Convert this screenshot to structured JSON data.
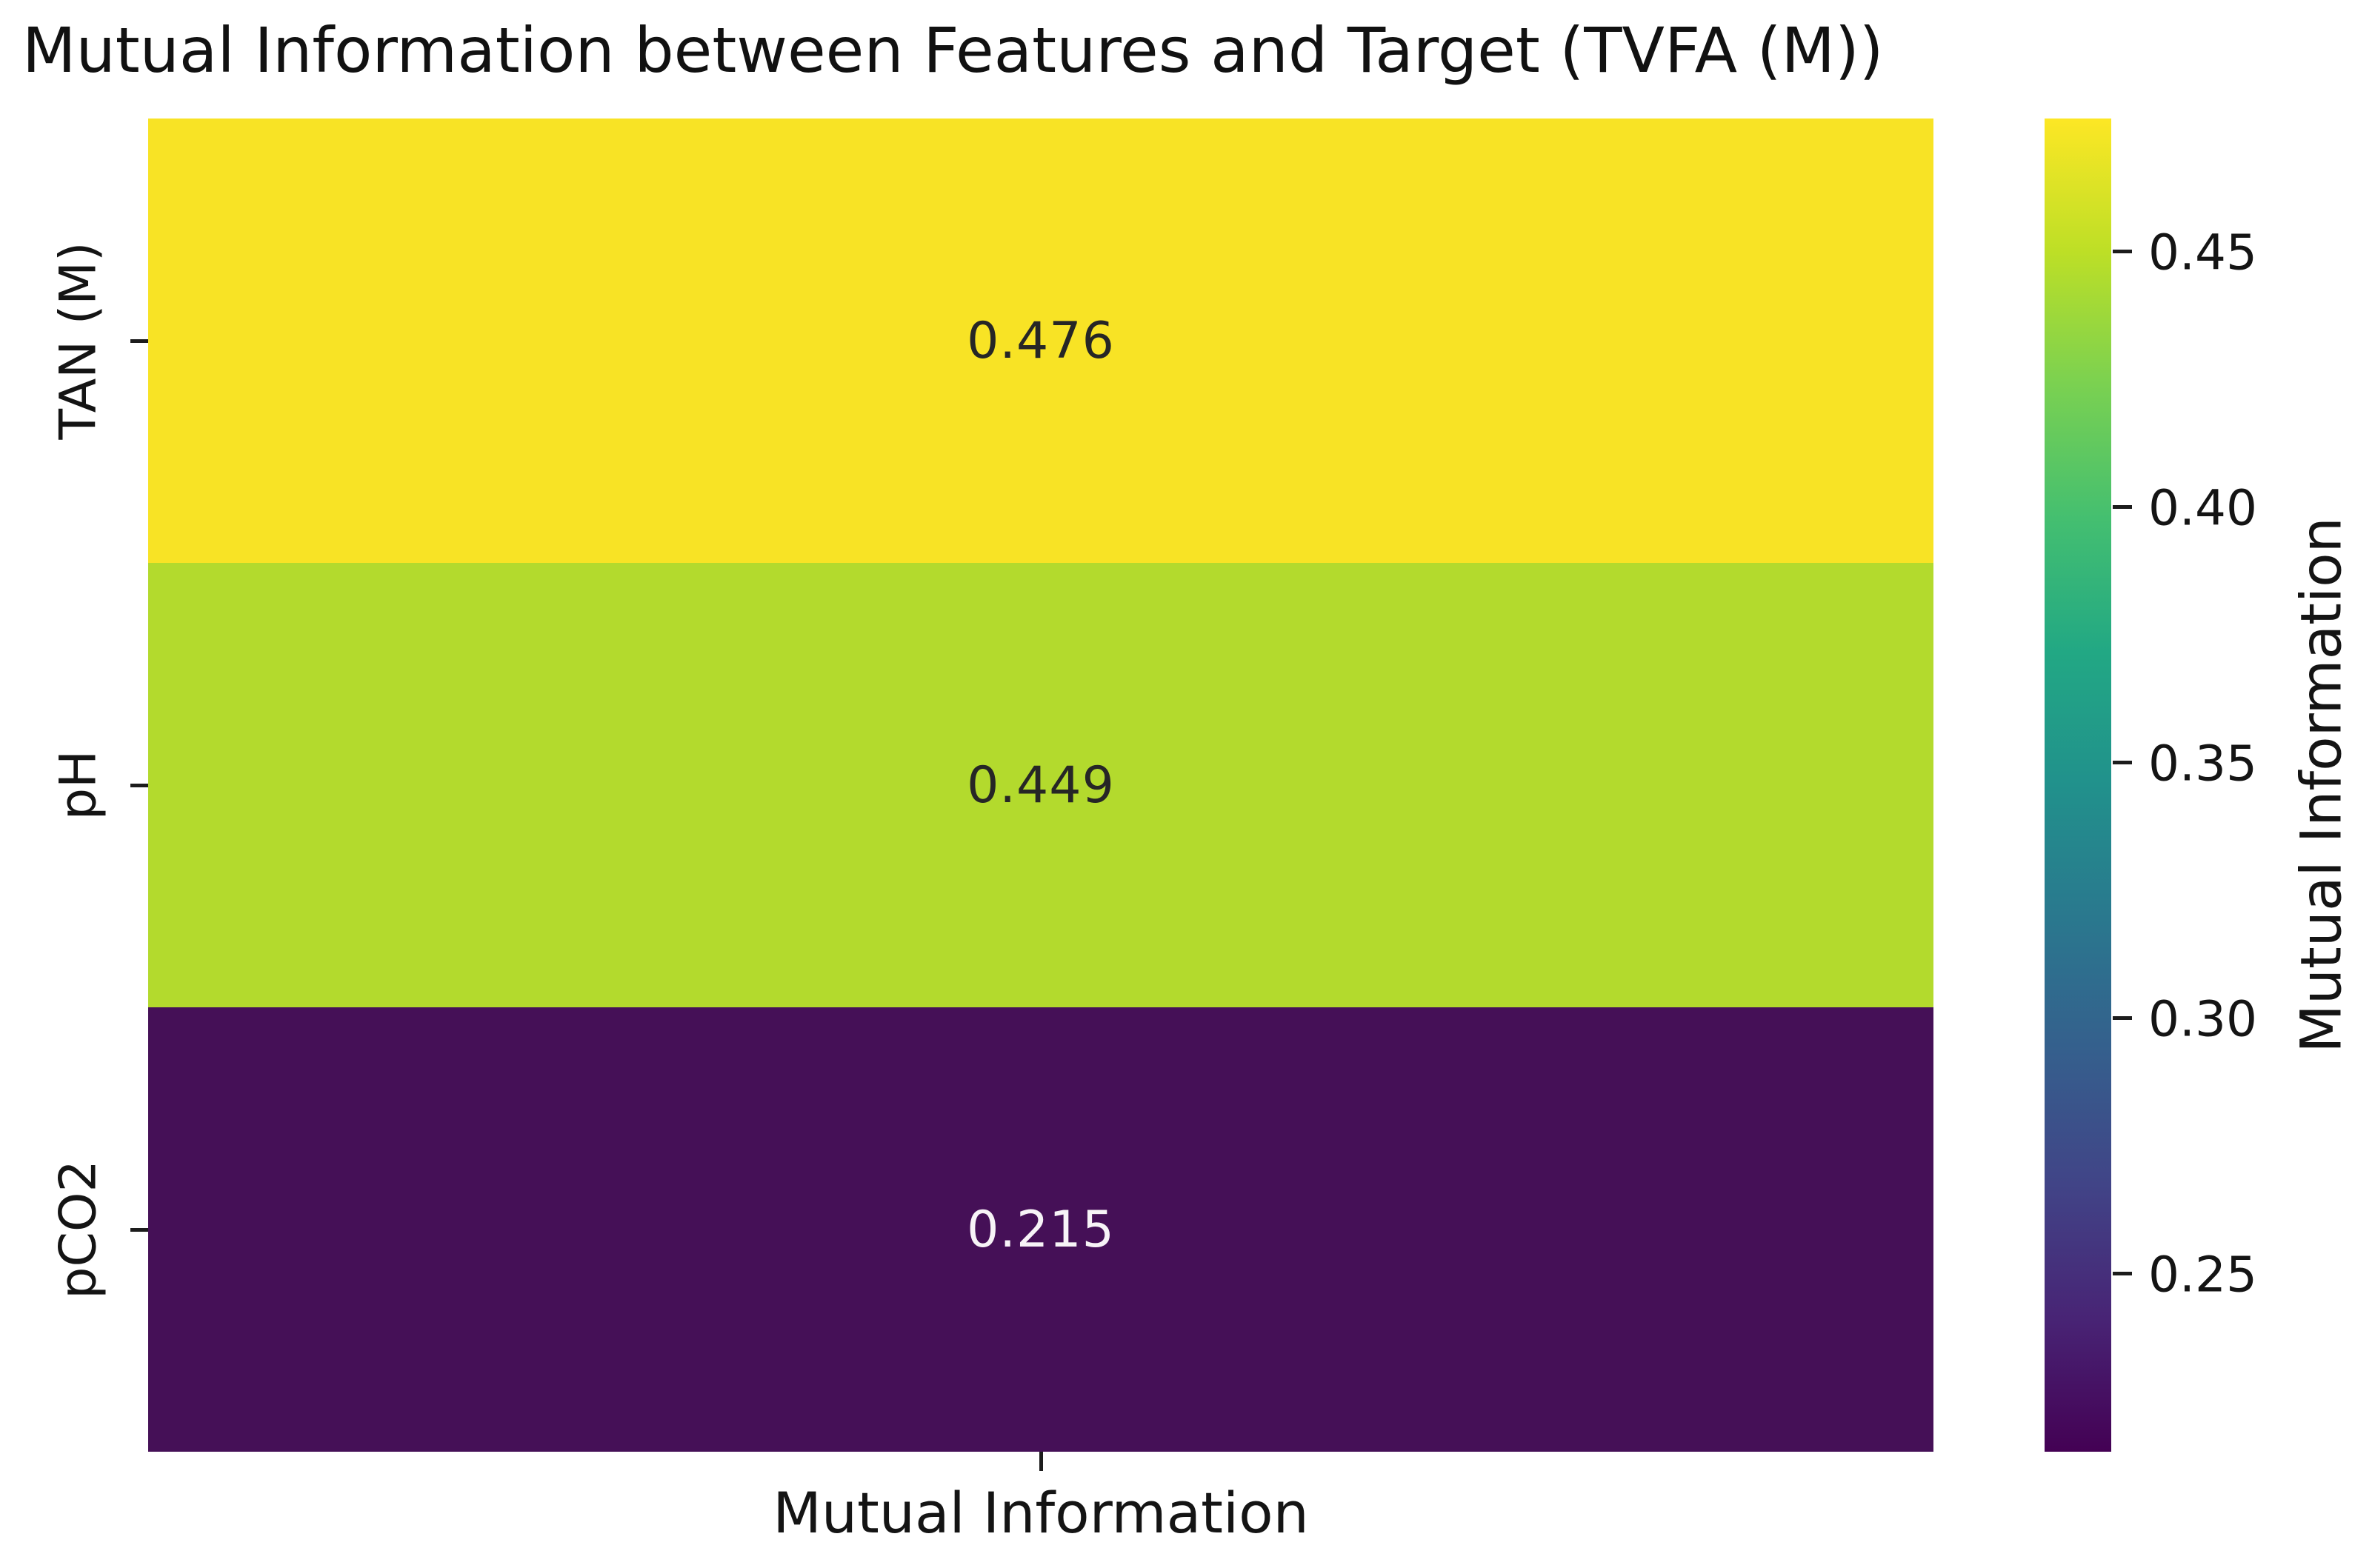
{
  "figure": {
    "title": "Mutual Information between Features and Target (TVFA (M))",
    "background_color": "#ffffff",
    "text_color": "#141414"
  },
  "chart_data": {
    "type": "heatmap",
    "title": "Mutual Information between Features and Target (TVFA (M))",
    "rows": [
      "TAN (M)",
      "pH",
      "pCO2"
    ],
    "columns": [
      "Mutual Information"
    ],
    "series": [
      {
        "name": "TAN (M)",
        "values": [
          0.476
        ]
      },
      {
        "name": "pH",
        "values": [
          0.449
        ]
      },
      {
        "name": "pCO2",
        "values": [
          0.215
        ]
      }
    ],
    "annotations": [
      "0.476",
      "0.449",
      "0.215"
    ],
    "xlabel": "Mutual Information",
    "ylabel": "",
    "grid": false,
    "colormap": "viridis",
    "vmin": 0.215,
    "vmax": 0.476,
    "colorbar": {
      "label": "Mutual Information",
      "position": "right",
      "ticks": [
        "0.45",
        "0.40",
        "0.35",
        "0.30",
        "0.25"
      ],
      "tick_values": [
        0.45,
        0.4,
        0.35,
        0.3,
        0.25
      ],
      "gradient_stops_top_to_bottom": [
        "#fde725",
        "#bddf26",
        "#7ad151",
        "#44bf70",
        "#22a884",
        "#21918c",
        "#2a788e",
        "#355f8d",
        "#414487",
        "#482475",
        "#440154"
      ]
    }
  },
  "cells": [
    {
      "row": "TAN (M)",
      "value_label": "0.476",
      "bg": "#f8e325",
      "fg": "#262626"
    },
    {
      "row": "pH",
      "value_label": "0.449",
      "bg": "#b3da2d",
      "fg": "#262626"
    },
    {
      "row": "pCO2",
      "value_label": "0.215",
      "bg": "#451057",
      "fg": "#f7f3f7"
    }
  ]
}
